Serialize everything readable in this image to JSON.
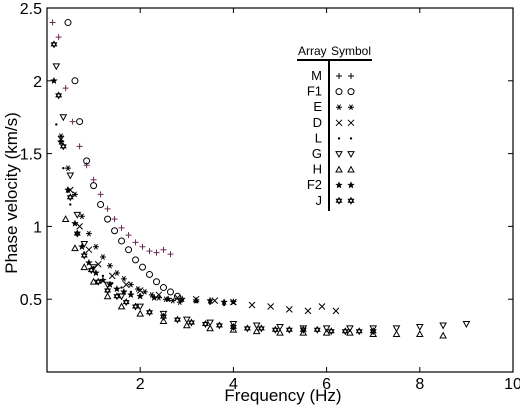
{
  "chart_data": {
    "type": "scatter",
    "xlabel": "Frequency (Hz)",
    "ylabel": "Phase velocity (km/s)",
    "xlim": [
      0,
      10
    ],
    "ylim": [
      0,
      2.5
    ],
    "xticks": [
      2,
      4,
      6,
      8,
      10
    ],
    "xtick_labels": [
      "2",
      "4",
      "6",
      "8",
      "10"
    ],
    "yticks": [
      0.5,
      1,
      1.5,
      2,
      2.5
    ],
    "ytick_labels": [
      "0.5",
      "1",
      "1.5",
      "2",
      "2.5"
    ],
    "grid": false,
    "legend": {
      "placement": "top-right",
      "header_array": "Array",
      "header_symbol": "Symbol",
      "entries": [
        {
          "array": "M",
          "symbol": "+ +"
        },
        {
          "array": "F1",
          "symbol": "○ ○"
        },
        {
          "array": "E",
          "symbol": "✱ ✱"
        },
        {
          "array": "D",
          "symbol": "× ×"
        },
        {
          "array": "L",
          "symbol": "· ·"
        },
        {
          "array": "G",
          "symbol": "▽ ▽"
        },
        {
          "array": "H",
          "symbol": "△ △"
        },
        {
          "array": "F2",
          "symbol": "★ ★"
        },
        {
          "array": "J",
          "symbol": "✡ ✡"
        }
      ]
    },
    "series": [
      {
        "name": "M",
        "marker": "plus",
        "color": "#6b2a55",
        "x": [
          0.12,
          0.25,
          0.4,
          0.55,
          0.7,
          0.85,
          1.0,
          1.15,
          1.3,
          1.45,
          1.6,
          1.75,
          1.9,
          2.05,
          2.2,
          2.35,
          2.5,
          2.65
        ],
        "y": [
          2.4,
          2.3,
          1.95,
          1.72,
          1.55,
          1.42,
          1.32,
          1.22,
          1.12,
          1.05,
          0.99,
          0.94,
          0.89,
          0.86,
          0.83,
          0.82,
          0.84,
          0.81
        ]
      },
      {
        "name": "F1",
        "marker": "circle",
        "color": "#000000",
        "x": [
          0.45,
          0.6,
          0.7,
          0.85,
          1.0,
          1.15,
          1.3,
          1.45,
          1.6,
          1.75,
          1.9,
          2.05,
          2.2,
          2.35,
          2.5,
          2.65,
          2.8
        ],
        "y": [
          2.4,
          2.0,
          1.72,
          1.45,
          1.28,
          1.15,
          1.05,
          0.97,
          0.9,
          0.84,
          0.77,
          0.72,
          0.67,
          0.62,
          0.58,
          0.55,
          0.52
        ]
      },
      {
        "name": "E",
        "marker": "star6",
        "color": "#000000",
        "x": [
          0.3,
          0.45,
          0.6,
          0.75,
          0.9,
          1.05,
          1.2,
          1.35,
          1.5,
          1.65,
          1.8,
          1.95,
          2.1,
          2.25,
          2.4,
          2.55,
          2.7,
          2.85
        ],
        "y": [
          1.62,
          1.4,
          1.22,
          1.07,
          0.95,
          0.86,
          0.79,
          0.73,
          0.68,
          0.64,
          0.6,
          0.57,
          0.55,
          0.53,
          0.51,
          0.5,
          0.49,
          0.48
        ]
      },
      {
        "name": "D",
        "marker": "cross",
        "color": "#000000",
        "x": [
          0.3,
          0.5,
          0.7,
          0.9,
          1.1,
          1.4,
          1.7,
          2.0,
          2.4,
          2.8,
          3.2,
          3.6,
          4.0,
          4.4,
          4.8,
          5.2,
          5.6,
          5.9,
          6.2
        ],
        "y": [
          1.6,
          1.25,
          1.0,
          0.84,
          0.74,
          0.66,
          0.6,
          0.56,
          0.53,
          0.51,
          0.5,
          0.49,
          0.48,
          0.46,
          0.45,
          0.43,
          0.42,
          0.45,
          0.42
        ]
      },
      {
        "name": "L",
        "marker": "dot",
        "color": "#000000",
        "x": [
          0.2,
          0.35,
          0.5,
          0.65,
          0.8,
          1.0,
          1.2,
          1.4,
          1.6,
          1.8,
          2.0,
          2.3,
          2.6,
          2.9,
          3.2,
          3.5,
          3.8
        ],
        "y": [
          1.7,
          1.4,
          1.15,
          0.95,
          0.82,
          0.72,
          0.66,
          0.61,
          0.58,
          0.55,
          0.53,
          0.51,
          0.5,
          0.49,
          0.48,
          0.47,
          0.46
        ]
      },
      {
        "name": "G",
        "marker": "tri-down",
        "color": "#000000",
        "x": [
          0.2,
          0.35,
          0.5,
          0.65,
          0.8,
          1.0,
          1.3,
          1.6,
          2.0,
          2.5,
          3.0,
          3.5,
          4.0,
          4.5,
          5.0,
          5.5,
          6.0,
          6.5,
          7.0,
          7.5,
          8.0,
          8.5,
          9.0
        ],
        "y": [
          2.1,
          1.75,
          1.35,
          1.08,
          0.88,
          0.72,
          0.6,
          0.52,
          0.45,
          0.4,
          0.36,
          0.34,
          0.33,
          0.32,
          0.31,
          0.3,
          0.3,
          0.3,
          0.3,
          0.3,
          0.31,
          0.32,
          0.33
        ]
      },
      {
        "name": "H",
        "marker": "tri-up",
        "color": "#000000",
        "x": [
          0.4,
          0.6,
          0.8,
          1.0,
          1.3,
          1.6,
          2.0,
          2.5,
          3.0,
          3.5,
          4.0,
          4.5,
          5.0,
          5.5,
          6.0,
          6.5,
          7.0,
          7.5,
          8.0,
          8.5
        ],
        "y": [
          1.05,
          0.85,
          0.72,
          0.62,
          0.52,
          0.45,
          0.4,
          0.35,
          0.32,
          0.3,
          0.29,
          0.28,
          0.27,
          0.27,
          0.27,
          0.27,
          0.26,
          0.26,
          0.26,
          0.25
        ]
      },
      {
        "name": "F2",
        "marker": "star5",
        "color": "#000000",
        "x": [
          0.15,
          0.3,
          0.45,
          0.6,
          0.75,
          0.9,
          1.05,
          1.2,
          1.35,
          1.5,
          1.65,
          1.8,
          2.0,
          2.3,
          2.6,
          2.9,
          3.2,
          3.5,
          3.8,
          4.0
        ],
        "y": [
          2.0,
          1.58,
          1.25,
          1.02,
          0.86,
          0.75,
          0.68,
          0.63,
          0.6,
          0.57,
          0.55,
          0.53,
          0.52,
          0.51,
          0.5,
          0.5,
          0.49,
          0.49,
          0.48,
          0.48
        ]
      },
      {
        "name": "J",
        "marker": "david",
        "color": "#000000",
        "x": [
          0.15,
          0.25,
          0.35,
          0.5,
          0.65,
          0.8,
          0.95,
          1.1,
          1.3,
          1.5,
          1.7,
          1.9,
          2.2,
          2.5,
          2.8,
          3.1,
          3.4,
          3.7,
          4.0,
          4.3,
          4.6,
          4.9,
          5.2,
          5.5,
          5.8,
          6.1,
          6.4,
          6.7,
          7.0
        ],
        "y": [
          2.25,
          1.9,
          1.55,
          1.2,
          0.95,
          0.8,
          0.7,
          0.62,
          0.56,
          0.52,
          0.48,
          0.45,
          0.41,
          0.38,
          0.36,
          0.34,
          0.33,
          0.32,
          0.31,
          0.3,
          0.3,
          0.29,
          0.29,
          0.29,
          0.29,
          0.28,
          0.28,
          0.28,
          0.28
        ]
      }
    ]
  }
}
